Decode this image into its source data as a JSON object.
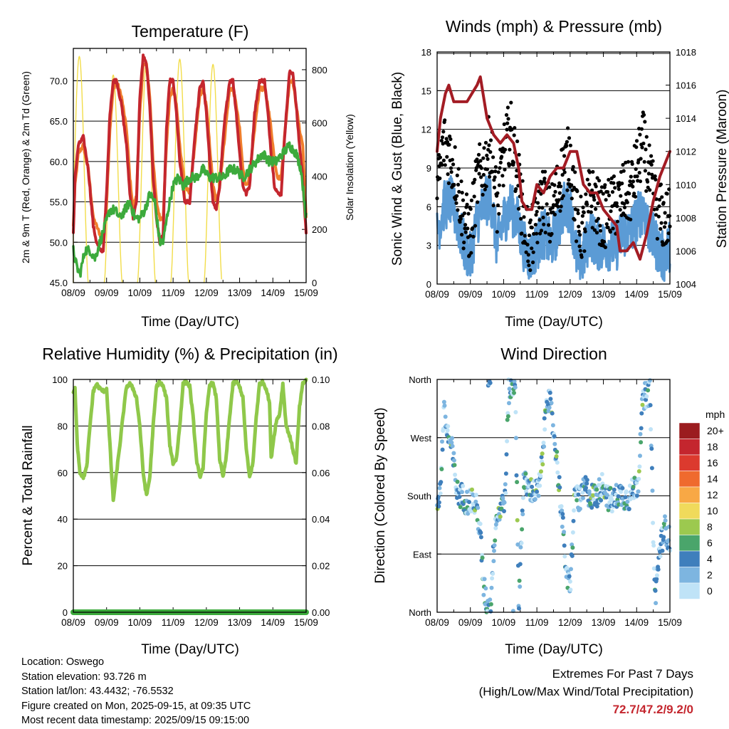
{
  "chart_data": [
    {
      "id": "temperature",
      "type": "line",
      "title": "Temperature (F)",
      "xlabel": "Time (Day/UTC)",
      "ylabel": "2m & 9m T (Red, Orange) & 2m Td (Green)",
      "y2label": "Solar Insolation (Yellow)",
      "x_ticks": [
        "08/09",
        "09/09",
        "10/09",
        "11/09",
        "12/09",
        "13/09",
        "14/09",
        "15/09"
      ],
      "xlim": [
        0,
        7
      ],
      "ylim": [
        45,
        74
      ],
      "y_ticks": [
        "45.0",
        "50.0",
        "55.0",
        "60.0",
        "65.0",
        "70.0"
      ],
      "y2lim": [
        0,
        880
      ],
      "y2_ticks": [
        "0",
        "200",
        "400",
        "600",
        "800"
      ],
      "grid": true,
      "series": [
        {
          "key": "t9m",
          "color": "#f07f2d",
          "width": 4,
          "x": [
            0,
            0.05,
            0.15,
            0.3,
            0.45,
            0.6,
            0.7,
            0.8,
            0.9,
            1.0,
            1.1,
            1.2,
            1.3,
            1.45,
            1.6,
            1.7,
            1.8,
            1.9,
            2.0,
            2.1,
            2.2,
            2.3,
            2.4,
            2.5,
            2.6,
            2.7,
            2.8,
            2.9,
            3.0,
            3.1,
            3.2,
            3.35,
            3.5,
            3.65,
            3.8,
            3.9,
            4.0,
            4.1,
            4.2,
            4.3,
            4.4,
            4.55,
            4.7,
            4.8,
            4.9,
            5.0,
            5.1,
            5.2,
            5.3,
            5.45,
            5.6,
            5.75,
            5.85,
            5.95,
            6.05,
            6.15,
            6.25,
            6.35,
            6.5,
            6.6,
            6.7,
            6.8,
            6.9,
            7.0
          ],
          "y": [
            52,
            57,
            61,
            62,
            59,
            53,
            52,
            51,
            50,
            55,
            64,
            69,
            70,
            68,
            64,
            58,
            54,
            56,
            66,
            72,
            72,
            68,
            60,
            55,
            53,
            53,
            62,
            68,
            69,
            67,
            62,
            57,
            56,
            62,
            68,
            69,
            67,
            62,
            57,
            55,
            57,
            63,
            69,
            69,
            67,
            64,
            59,
            57,
            58,
            64,
            69,
            69,
            67,
            64,
            60,
            58,
            58,
            63,
            70,
            70,
            67,
            64,
            62,
            53
          ]
        },
        {
          "key": "t2m",
          "color": "#c4262e",
          "width": 4,
          "x": [
            0,
            0.05,
            0.15,
            0.3,
            0.45,
            0.6,
            0.7,
            0.8,
            0.9,
            1.0,
            1.1,
            1.2,
            1.3,
            1.45,
            1.6,
            1.7,
            1.8,
            1.9,
            2.0,
            2.1,
            2.2,
            2.3,
            2.4,
            2.5,
            2.6,
            2.7,
            2.8,
            2.9,
            3.0,
            3.1,
            3.2,
            3.35,
            3.5,
            3.65,
            3.8,
            3.9,
            4.0,
            4.1,
            4.2,
            4.3,
            4.4,
            4.55,
            4.7,
            4.8,
            4.9,
            5.0,
            5.1,
            5.2,
            5.3,
            5.45,
            5.6,
            5.75,
            5.85,
            5.95,
            6.05,
            6.15,
            6.25,
            6.35,
            6.5,
            6.6,
            6.7,
            6.8,
            6.9,
            7.0
          ],
          "y": [
            51,
            58,
            62,
            63,
            59,
            52,
            50,
            49,
            49,
            56,
            66,
            70,
            70,
            67,
            62,
            56,
            53,
            55,
            68,
            73,
            72,
            67,
            58,
            53,
            50,
            51,
            64,
            70,
            70,
            66,
            60,
            55,
            55,
            63,
            69,
            70,
            66,
            60,
            55,
            54,
            57,
            65,
            70,
            70,
            66,
            61,
            57,
            56,
            57,
            66,
            70,
            70,
            66,
            61,
            57,
            56,
            56,
            63,
            71,
            71,
            67,
            62,
            58,
            51
          ]
        },
        {
          "key": "td2m",
          "color": "#3caa3c",
          "width": 3.5,
          "x": [
            0,
            0.1,
            0.2,
            0.35,
            0.5,
            0.65,
            0.8,
            0.95,
            1.1,
            1.25,
            1.4,
            1.55,
            1.7,
            1.85,
            2.0,
            2.15,
            2.3,
            2.45,
            2.6,
            2.7,
            2.85,
            3.0,
            3.15,
            3.3,
            3.5,
            3.7,
            3.9,
            4.1,
            4.3,
            4.5,
            4.7,
            4.9,
            5.1,
            5.3,
            5.5,
            5.7,
            5.9,
            6.1,
            6.3,
            6.5,
            6.7,
            6.85,
            7.0
          ],
          "y": [
            49,
            47,
            46,
            49,
            49,
            48,
            50,
            52,
            54,
            54,
            53,
            54,
            55,
            53,
            53,
            54,
            56,
            55,
            50,
            50,
            54,
            57,
            58,
            57,
            58,
            58,
            59,
            58,
            58,
            58,
            59,
            59,
            58,
            59,
            60,
            61,
            60,
            60,
            61,
            62,
            61,
            59,
            53
          ]
        }
      ],
      "solar": {
        "color": "#f2dd4a",
        "peaks": [
          {
            "t": 0.18,
            "v": 850
          },
          {
            "t": 1.2,
            "v": 780
          },
          {
            "t": 2.2,
            "v": 830
          },
          {
            "t": 3.2,
            "v": 840
          },
          {
            "t": 4.2,
            "v": 820
          },
          {
            "t": 5.2,
            "v": 850
          },
          {
            "t": 6.2,
            "v": 820
          }
        ],
        "half_width": 0.27
      }
    },
    {
      "id": "winds",
      "type": "scatter",
      "title": "Winds (mph) & Pressure (mb)",
      "xlabel": "Time (Day/UTC)",
      "ylabel": "Sonic Wind & Gust (Blue, Black)",
      "y2label": "Station Pressure (Maroon)",
      "x_ticks": [
        "08/09",
        "09/09",
        "10/09",
        "11/09",
        "12/09",
        "13/09",
        "14/09",
        "15/09"
      ],
      "xlim": [
        0,
        7
      ],
      "ylim": [
        0,
        18
      ],
      "y_ticks": [
        "0",
        "3",
        "6",
        "9",
        "12",
        "15",
        "18"
      ],
      "y2lim": [
        1004,
        1018
      ],
      "y2_ticks": [
        "1004",
        "1006",
        "1008",
        "1010",
        "1012",
        "1014",
        "1016",
        "1018"
      ],
      "grid": true,
      "wind_profile": {
        "x": [
          0,
          0.2,
          0.4,
          0.6,
          0.8,
          1.0,
          1.2,
          1.4,
          1.6,
          1.8,
          2.0,
          2.2,
          2.4,
          2.6,
          2.8,
          3.0,
          3.2,
          3.4,
          3.6,
          3.8,
          4.0,
          4.2,
          4.4,
          4.6,
          4.8,
          5.0,
          5.2,
          5.4,
          5.6,
          5.8,
          6.0,
          6.2,
          6.4,
          6.6,
          6.8,
          7.0
        ],
        "y": [
          4,
          6,
          6.5,
          5,
          3,
          2,
          5,
          6,
          7,
          3,
          5,
          6,
          5,
          3,
          2,
          3,
          4,
          3,
          4,
          6,
          6,
          2,
          2,
          4,
          3,
          3,
          3,
          3,
          4,
          4,
          5,
          6,
          4,
          3,
          2,
          3
        ]
      },
      "gust_profile": {
        "y": [
          7,
          11,
          10,
          8,
          5,
          4,
          8,
          9,
          11,
          6,
          10,
          12,
          9,
          5,
          3,
          5,
          7,
          5,
          7,
          9,
          10,
          5,
          4,
          7,
          6,
          5,
          6,
          6,
          7,
          7,
          9,
          11,
          8,
          6,
          5,
          5
        ]
      },
      "pressure": {
        "color": "#a31c24",
        "x": [
          0,
          0.1,
          0.25,
          0.35,
          0.5,
          0.7,
          0.9,
          1.05,
          1.2,
          1.3,
          1.5,
          1.7,
          1.9,
          2.1,
          2.3,
          2.45,
          2.55,
          2.7,
          2.85,
          3.0,
          3.2,
          3.4,
          3.6,
          3.8,
          4.0,
          4.1,
          4.2,
          4.3,
          4.4,
          4.6,
          4.8,
          4.9,
          5.0,
          5.2,
          5.4,
          5.5,
          5.7,
          5.9,
          6.1,
          6.3,
          6.5,
          6.7,
          6.9,
          7.0
        ],
        "y": [
          1012,
          1014,
          1015.5,
          1016,
          1015,
          1015,
          1015,
          1015.5,
          1016,
          1016.5,
          1014,
          1013,
          1012.5,
          1013,
          1012.5,
          1011,
          1009,
          1008.5,
          1008.5,
          1010,
          1009.5,
          1010.5,
          1011,
          1011,
          1012,
          1012,
          1012,
          1011,
          1010,
          1009.5,
          1009.5,
          1009,
          1008.5,
          1008,
          1007.5,
          1006,
          1006,
          1006.5,
          1005.5,
          1007,
          1009,
          1010.5,
          1011.5,
          1012
        ]
      }
    },
    {
      "id": "humidity",
      "type": "line",
      "title": "Relative Humidity (%) & Precipitation (in)",
      "xlabel": "Time (Day/UTC)",
      "ylabel": "Percent & Total Rainfall",
      "x_ticks": [
        "08/09",
        "09/09",
        "10/09",
        "11/09",
        "12/09",
        "13/09",
        "14/09",
        "15/09"
      ],
      "xlim": [
        0,
        7
      ],
      "ylim": [
        0,
        100
      ],
      "y_ticks": [
        "0",
        "20",
        "40",
        "60",
        "80",
        "100"
      ],
      "y2lim": [
        0,
        0.1
      ],
      "y2_ticks": [
        "0.00",
        "0.02",
        "0.04",
        "0.06",
        "0.08",
        "0.10"
      ],
      "grid": true,
      "series": [
        {
          "key": "rh",
          "color": "#8fc84a",
          "width": 5,
          "x": [
            0,
            0.05,
            0.12,
            0.2,
            0.3,
            0.4,
            0.5,
            0.6,
            0.7,
            0.8,
            0.9,
            1.0,
            1.1,
            1.2,
            1.3,
            1.4,
            1.5,
            1.6,
            1.7,
            1.8,
            1.9,
            2.0,
            2.1,
            2.2,
            2.3,
            2.4,
            2.5,
            2.6,
            2.7,
            2.8,
            2.9,
            3.0,
            3.1,
            3.2,
            3.3,
            3.4,
            3.5,
            3.6,
            3.7,
            3.8,
            3.9,
            4.0,
            4.1,
            4.2,
            4.3,
            4.4,
            4.5,
            4.6,
            4.7,
            4.8,
            4.9,
            5.0,
            5.1,
            5.2,
            5.3,
            5.4,
            5.5,
            5.6,
            5.7,
            5.8,
            5.9,
            5.95,
            6.0,
            6.1,
            6.2,
            6.3,
            6.4,
            6.5,
            6.6,
            6.7,
            6.8,
            6.9,
            7.0
          ],
          "y": [
            94,
            96,
            72,
            60,
            58,
            62,
            80,
            95,
            98,
            96,
            95,
            96,
            72,
            48,
            60,
            72,
            85,
            97,
            98,
            96,
            92,
            80,
            60,
            50,
            58,
            80,
            97,
            99,
            97,
            92,
            72,
            64,
            66,
            80,
            98,
            99,
            97,
            84,
            66,
            58,
            62,
            85,
            98,
            98,
            92,
            66,
            58,
            67,
            84,
            98,
            99,
            97,
            92,
            70,
            58,
            64,
            84,
            98,
            99,
            96,
            90,
            66,
            72,
            82,
            85,
            98,
            80,
            76,
            70,
            64,
            88,
            98,
            100
          ]
        },
        {
          "key": "precip",
          "color": "#3caa3c",
          "width": 8,
          "x": [
            0,
            7
          ],
          "y": [
            0,
            0
          ]
        }
      ]
    },
    {
      "id": "direction",
      "type": "scatter",
      "title": "Wind Direction",
      "xlabel": "Time (Day/UTC)",
      "ylabel": "Direction (Colored By Speed)",
      "x_ticks": [
        "08/09",
        "09/09",
        "10/09",
        "11/09",
        "12/09",
        "13/09",
        "14/09",
        "15/09"
      ],
      "xlim": [
        0,
        7
      ],
      "ylim": [
        0,
        360
      ],
      "y_ticks": [
        "North",
        "East",
        "South",
        "West",
        "North"
      ],
      "grid": true,
      "dir_profile": {
        "x": [
          0,
          0.1,
          0.2,
          0.3,
          0.45,
          0.6,
          0.75,
          0.9,
          1.05,
          1.2,
          1.3,
          1.4,
          1.5,
          1.6,
          1.75,
          1.9,
          2.05,
          2.15,
          2.25,
          2.35,
          2.45,
          2.6,
          2.8,
          3.0,
          3.1,
          3.2,
          3.3,
          3.4,
          3.55,
          3.7,
          3.8,
          3.9,
          4.0,
          4.15,
          4.3,
          4.45,
          4.6,
          4.8,
          5.0,
          5.15,
          5.3,
          5.45,
          5.6,
          5.75,
          5.9,
          6.05,
          6.15,
          6.25,
          6.4,
          6.55,
          6.7,
          6.85,
          7.0
        ],
        "y": [
          170,
          190,
          310,
          280,
          250,
          185,
          180,
          170,
          175,
          160,
          120,
          40,
          10,
          5,
          140,
          160,
          180,
          340,
          345,
          360,
          10,
          200,
          190,
          185,
          200,
          260,
          340,
          320,
          260,
          180,
          120,
          50,
          40,
          190,
          170,
          195,
          180,
          180,
          200,
          175,
          170,
          185,
          180,
          175,
          190,
          200,
          310,
          335,
          340,
          20,
          100,
          130,
          110
        ]
      },
      "legend": {
        "title": "mph",
        "labels": [
          "20+",
          "18",
          "16",
          "14",
          "12",
          "10",
          "8",
          "6",
          "4",
          "2",
          "0"
        ],
        "colors": [
          "#9b1c1f",
          "#c4262e",
          "#dc3a2e",
          "#ef6a2e",
          "#f8a845",
          "#f0da5b",
          "#9cc94f",
          "#4aa56b",
          "#3f7fbc",
          "#7db5e0",
          "#bfe3f7"
        ]
      }
    }
  ],
  "info": {
    "location": "Location: Oswego",
    "elevation": "Station elevation: 93.726 m",
    "latlon": "Station lat/lon: 43.4432; -76.5532",
    "created": "Figure created on Mon, 2025-09-15, at 09:35 UTC",
    "recent": "Most recent data timestamp: 2025/09/15 09:15:00"
  },
  "extremes": {
    "title": "Extremes For Past 7 Days",
    "subtitle": "(High/Low/Max Wind/Total Precipitation)",
    "values": "72.7/47.2/9.2/0"
  }
}
